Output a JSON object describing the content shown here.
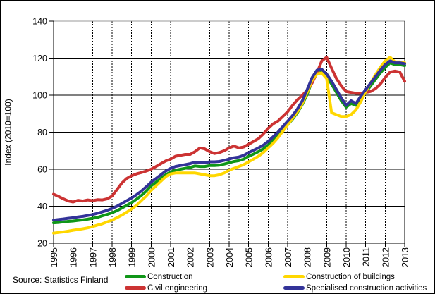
{
  "source_text": "Source: Statistics Finland",
  "chart_data": {
    "type": "line",
    "ylabel": "Index (2010=100)",
    "xlabel": "",
    "ylim": [
      20,
      140
    ],
    "ytick_step": 20,
    "ytick_labels": [
      "20",
      "40",
      "60",
      "80",
      "100",
      "120",
      "140"
    ],
    "x_tick_labels": [
      "1995",
      "1996",
      "1997",
      "1998",
      "1999",
      "2000",
      "2001",
      "2002",
      "2003",
      "2004",
      "2005",
      "2006",
      "2007",
      "2008",
      "2009",
      "2010",
      "2011",
      "2012",
      "2013"
    ],
    "x_start_year": 1995,
    "x_end_year": 2013,
    "points_per_year": 4,
    "grid": {
      "horizontal": "solid",
      "vertical": "dashed"
    },
    "legend_position": "bottom",
    "axis_color": "#000000",
    "top_border_color": "#9a9a9a",
    "series": [
      {
        "name": "Construction",
        "color": "#109618",
        "values": [
          31.0,
          31.2,
          31.5,
          31.8,
          32.0,
          32.3,
          32.6,
          33.0,
          33.5,
          34.0,
          34.8,
          35.6,
          36.5,
          37.6,
          39.0,
          40.5,
          42.0,
          43.8,
          45.8,
          48.2,
          51.0,
          53.0,
          55.0,
          57.0,
          58.5,
          59.5,
          60.0,
          60.5,
          61.0,
          61.8,
          61.5,
          61.5,
          62.0,
          62.0,
          62.2,
          62.8,
          63.5,
          64.2,
          64.6,
          65.5,
          67.0,
          68.2,
          69.5,
          71.0,
          73.0,
          75.5,
          78.0,
          81.0,
          84.0,
          87.0,
          90.5,
          95.0,
          100.5,
          107.5,
          111.5,
          112.5,
          110.0,
          106.0,
          101.5,
          97.0,
          93.5,
          95.5,
          94.5,
          98.0,
          101.5,
          105.0,
          108.5,
          112.0,
          115.0,
          117.5,
          116.5,
          116.5,
          116.0
        ]
      },
      {
        "name": "Civil engineering",
        "color": "#cc3333",
        "values": [
          46.5,
          45.3,
          44.0,
          42.8,
          42.3,
          43.2,
          42.8,
          43.4,
          43.0,
          43.5,
          43.4,
          44.0,
          45.5,
          49.0,
          52.5,
          55.0,
          56.5,
          57.5,
          58.2,
          59.0,
          60.0,
          61.5,
          63.0,
          64.5,
          65.5,
          67.0,
          67.5,
          68.0,
          68.0,
          69.5,
          71.5,
          71.0,
          69.5,
          68.5,
          69.0,
          70.0,
          71.5,
          72.5,
          71.5,
          72.0,
          73.5,
          75.0,
          76.5,
          79.0,
          82.0,
          84.5,
          86.0,
          88.5,
          91.0,
          94.5,
          97.5,
          100.0,
          102.5,
          106.5,
          112.0,
          118.5,
          120.5,
          114.5,
          109.0,
          105.0,
          102.0,
          101.5,
          101.0,
          101.0,
          101.5,
          102.0,
          103.5,
          106.0,
          109.5,
          112.5,
          113.0,
          112.5,
          107.5
        ]
      },
      {
        "name": "Construction of buildings",
        "color": "#ffd700",
        "values": [
          25.5,
          25.8,
          26.1,
          26.5,
          27.0,
          27.4,
          27.8,
          28.3,
          29.0,
          29.8,
          30.5,
          31.5,
          32.5,
          33.8,
          35.2,
          36.8,
          38.5,
          40.5,
          43.0,
          45.5,
          48.5,
          51.0,
          53.5,
          56.0,
          57.5,
          58.0,
          58.0,
          58.0,
          58.0,
          58.0,
          57.5,
          57.0,
          56.5,
          56.5,
          57.0,
          58.0,
          59.5,
          60.5,
          61.5,
          62.5,
          64.0,
          65.5,
          67.0,
          69.0,
          71.5,
          74.0,
          77.0,
          80.5,
          84.0,
          87.5,
          91.0,
          95.5,
          101.5,
          108.0,
          111.5,
          112.0,
          109.0,
          90.5,
          89.5,
          88.5,
          88.5,
          89.5,
          92.0,
          96.5,
          102.0,
          106.5,
          111.0,
          115.0,
          118.5,
          120.5,
          118.0,
          118.0,
          117.5
        ]
      },
      {
        "name": "Specialised construction activities",
        "color": "#333399",
        "values": [
          32.5,
          32.8,
          33.1,
          33.5,
          33.8,
          34.2,
          34.5,
          35.0,
          35.5,
          36.2,
          37.0,
          37.8,
          38.8,
          40.0,
          41.5,
          43.0,
          44.5,
          46.2,
          48.2,
          50.5,
          53.0,
          55.0,
          57.0,
          59.0,
          60.5,
          61.5,
          62.0,
          62.5,
          63.0,
          63.8,
          63.5,
          63.5,
          64.0,
          64.0,
          64.2,
          64.8,
          65.5,
          66.2,
          66.6,
          67.5,
          69.0,
          70.2,
          71.5,
          73.0,
          75.0,
          77.5,
          80.0,
          83.0,
          86.0,
          89.0,
          92.5,
          97.0,
          103.0,
          109.5,
          113.5,
          114.0,
          111.5,
          107.5,
          103.0,
          98.5,
          94.5,
          97.0,
          95.5,
          99.5,
          103.0,
          106.5,
          110.0,
          113.5,
          116.5,
          118.5,
          117.5,
          117.5,
          117.0
        ]
      }
    ]
  }
}
